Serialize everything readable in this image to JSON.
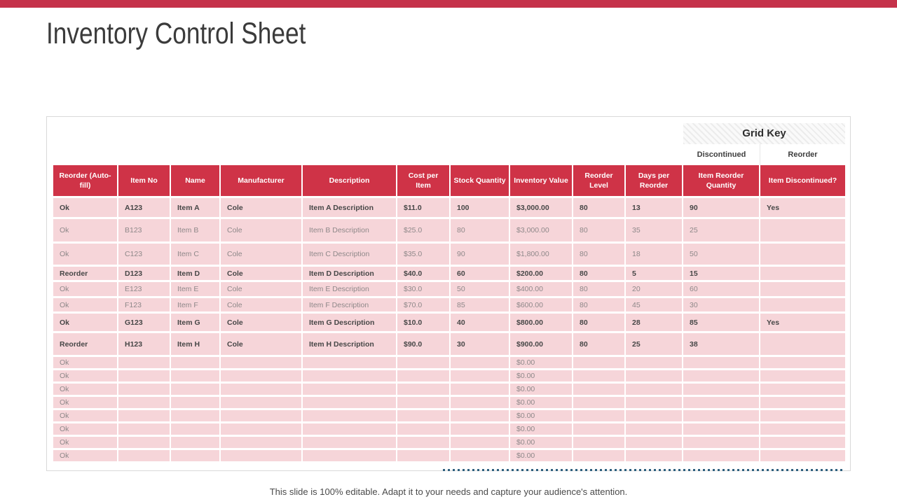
{
  "slide": {
    "title": "Inventory Control Sheet",
    "footer_note": "This slide is 100% editable. Adapt it to your needs and capture your audience's attention."
  },
  "colors": {
    "top_bar_red": "#c5324a",
    "header_red": "#cf3347",
    "row_pink": "#f6d5d9",
    "dotted_line_blue": "#2d5f7e"
  },
  "grid_key": {
    "title": "Grid Key",
    "labels": [
      "Discontinued",
      "Reorder"
    ]
  },
  "table": {
    "columns": [
      "Reorder (Auto-fill)",
      "Item No",
      "Name",
      "Manufacturer",
      "Description",
      "Cost per Item",
      "Stock Quantity",
      "Inventory Value",
      "Reorder Level",
      "Days per Reorder",
      "Item Reorder Quantity",
      "Item Discontinued?"
    ],
    "rows": [
      {
        "bold": true,
        "cells": [
          "Ok",
          "A123",
          "Item A",
          "Cole",
          "Item A Description",
          "$11.0",
          "100",
          "$3,000.00",
          "80",
          "13",
          "90",
          "Yes"
        ]
      },
      {
        "bold": false,
        "cells": [
          "Ok",
          "B123",
          "Item B",
          "Cole",
          "Item B Description",
          "$25.0",
          "80",
          "$3,000.00",
          "80",
          "35",
          "25",
          ""
        ]
      },
      {
        "bold": false,
        "cells": [
          "Ok",
          "C123",
          "Item C",
          "Cole",
          "Item C Description",
          "$35.0",
          "90",
          "$1,800.00",
          "80",
          "18",
          "50",
          ""
        ]
      },
      {
        "bold": true,
        "cells": [
          "Reorder",
          "D123",
          "Item D",
          "Cole",
          "Item D Description",
          "$40.0",
          "60",
          "$200.00",
          "80",
          "5",
          "15",
          ""
        ]
      },
      {
        "bold": false,
        "cells": [
          "Ok",
          "E123",
          "Item E",
          "Cole",
          "Item E Description",
          "$30.0",
          "50",
          "$400.00",
          "80",
          "20",
          "60",
          ""
        ]
      },
      {
        "bold": false,
        "cells": [
          "Ok",
          "F123",
          "Item F",
          "Cole",
          "Item F Description",
          "$70.0",
          "85",
          "$600.00",
          "80",
          "45",
          "30",
          ""
        ]
      },
      {
        "bold": true,
        "cells": [
          "Ok",
          "G123",
          "Item G",
          "Cole",
          "Item G Description",
          "$10.0",
          "40",
          "$800.00",
          "80",
          "28",
          "85",
          "Yes"
        ]
      },
      {
        "bold": true,
        "cells": [
          "Reorder",
          "H123",
          "Item H",
          "Cole",
          "Item H Description",
          "$90.0",
          "30",
          "$900.00",
          "80",
          "25",
          "38",
          ""
        ]
      },
      {
        "bold": false,
        "cells": [
          "Ok",
          "",
          "",
          "",
          "",
          "",
          "",
          "$0.00",
          "",
          "",
          "",
          ""
        ]
      },
      {
        "bold": false,
        "cells": [
          "Ok",
          "",
          "",
          "",
          "",
          "",
          "",
          "$0.00",
          "",
          "",
          "",
          ""
        ]
      },
      {
        "bold": false,
        "cells": [
          "Ok",
          "",
          "",
          "",
          "",
          "",
          "",
          "$0.00",
          "",
          "",
          "",
          ""
        ]
      },
      {
        "bold": false,
        "cells": [
          "Ok",
          "",
          "",
          "",
          "",
          "",
          "",
          "$0.00",
          "",
          "",
          "",
          ""
        ]
      },
      {
        "bold": false,
        "cells": [
          "Ok",
          "",
          "",
          "",
          "",
          "",
          "",
          "$0.00",
          "",
          "",
          "",
          ""
        ]
      },
      {
        "bold": false,
        "cells": [
          "Ok",
          "",
          "",
          "",
          "",
          "",
          "",
          "$0.00",
          "",
          "",
          "",
          ""
        ]
      },
      {
        "bold": false,
        "cells": [
          "Ok",
          "",
          "",
          "",
          "",
          "",
          "",
          "$0.00",
          "",
          "",
          "",
          ""
        ]
      },
      {
        "bold": false,
        "cells": [
          "Ok",
          "",
          "",
          "",
          "",
          "",
          "",
          "$0.00",
          "",
          "",
          "",
          ""
        ]
      }
    ]
  }
}
